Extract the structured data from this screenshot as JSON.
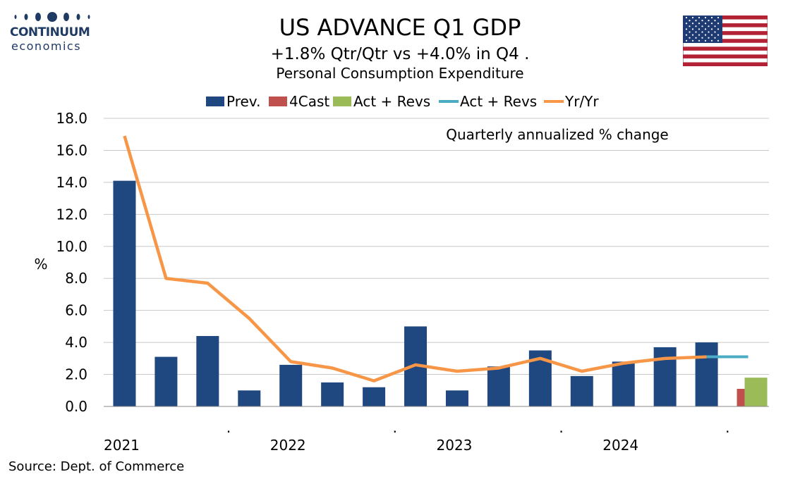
{
  "logo": {
    "brand": "CONTINUUM",
    "sub": "economics"
  },
  "header": {
    "title": "US ADVANCE Q1 GDP",
    "subtitle": "+1.8% Qtr/Qtr vs +4.0% in Q4 .",
    "subtitle2": "Personal Consumption Expenditure"
  },
  "source": "Source: Dept. of Commerce",
  "colors": {
    "prev": "#1f4780",
    "forecast": "#c0504d",
    "actual": "#9bbb59",
    "actual_line": "#4bacc6",
    "yoy": "#f79646"
  },
  "chart_data": {
    "type": "bar",
    "ylabel": "%",
    "annotation": "Quarterly annualized % change",
    "ylim": [
      0,
      18
    ],
    "yticks": [
      "0.0",
      "2.0",
      "4.0",
      "6.0",
      "8.0",
      "10.0",
      "12.0",
      "14.0",
      "16.0",
      "18.0"
    ],
    "x_labels": [
      {
        "index": 0,
        "text": "2021"
      },
      {
        "index": 2.5,
        "text": "."
      },
      {
        "index": 4,
        "text": "2022"
      },
      {
        "index": 6.5,
        "text": "."
      },
      {
        "index": 8,
        "text": "2023"
      },
      {
        "index": 10.5,
        "text": "."
      },
      {
        "index": 12,
        "text": "2024"
      },
      {
        "index": 14.5,
        "text": "."
      }
    ],
    "num_slots": 16,
    "legend": [
      "Prev.",
      "4Cast",
      "Act + Revs",
      "Act + Revs",
      "Yr/Yr"
    ],
    "legend_position": "top",
    "series": [
      {
        "name": "Prev.",
        "kind": "bar",
        "x": [
          0,
          1,
          2,
          3,
          4,
          5,
          6,
          7,
          8,
          9,
          10,
          11,
          12,
          13,
          14
        ],
        "values": [
          14.1,
          3.1,
          4.4,
          1.0,
          2.6,
          1.5,
          1.2,
          5.0,
          1.0,
          2.5,
          3.5,
          1.9,
          2.8,
          3.7,
          4.0
        ]
      },
      {
        "name": "4Cast",
        "kind": "bar",
        "x": [
          15
        ],
        "values": [
          1.1
        ]
      },
      {
        "name": "Act + Revs",
        "kind": "bar",
        "x": [
          15
        ],
        "values": [
          1.8
        ]
      },
      {
        "name": "Act + Revs",
        "kind": "line",
        "x": [
          14,
          15
        ],
        "values": [
          3.1,
          3.1
        ]
      },
      {
        "name": "Yr/Yr",
        "kind": "line",
        "x": [
          0,
          1,
          2,
          3,
          4,
          5,
          6,
          7,
          8,
          9,
          10,
          11,
          12,
          13,
          14
        ],
        "values": [
          16.9,
          8.0,
          7.7,
          5.5,
          2.8,
          2.4,
          1.6,
          2.6,
          2.2,
          2.4,
          3.0,
          2.2,
          2.7,
          3.0,
          3.1
        ]
      }
    ]
  }
}
